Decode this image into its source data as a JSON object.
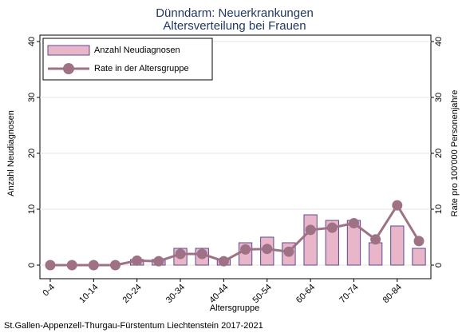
{
  "chart_data": {
    "type": "bar-line",
    "title": [
      "Dünndarm: Neuerkrankungen",
      "Altersverteilung bei Frauen"
    ],
    "xlabel": "Altersgruppe",
    "ylabel": "Anzahl Neudiagnosen",
    "y2label": "Rate pro 100'000 Personenjahre",
    "footnote": "St.Gallen-Appenzell-Thurgau-Fürstentum Liechtenstein 2017-2021",
    "categories": [
      "0-4",
      null,
      "10-14",
      null,
      "20-24",
      null,
      "30-34",
      null,
      "40-44",
      null,
      "50-54",
      null,
      "60-64",
      null,
      "70-74",
      null,
      "80-84",
      null
    ],
    "series": [
      {
        "name": "Anzahl Neudiagnosen",
        "color": "#e9b6c9",
        "edge": "#5b4a8f",
        "kind": "bar",
        "values": [
          0,
          0,
          0,
          0,
          1,
          1,
          3,
          3,
          1,
          4,
          5,
          4,
          9,
          8,
          8,
          4,
          7,
          3
        ]
      },
      {
        "name": "Rate in der Altersgruppe",
        "color": "#9e7284",
        "kind": "line",
        "axis": "y2",
        "values": [
          0,
          0,
          0,
          0,
          0.8,
          0.7,
          2,
          2,
          0.7,
          2.8,
          2.9,
          2.4,
          6.3,
          6.7,
          7.5,
          4.6,
          10.7,
          4.3
        ]
      }
    ],
    "ylim": [
      0,
      40
    ],
    "yticks": [
      0,
      10,
      20,
      30,
      40
    ],
    "y2lim": [
      0,
      40
    ],
    "y2ticks": [
      0,
      10,
      20,
      30,
      40
    ],
    "grid": true,
    "legend": "top-left"
  }
}
